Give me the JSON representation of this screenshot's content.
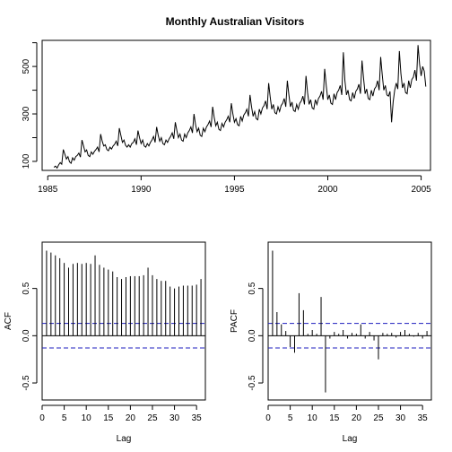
{
  "chart_data": [
    {
      "type": "line",
      "title": "Monthly Australian Visitors",
      "xlabel": "",
      "ylabel": "",
      "xlim": [
        1984.7,
        2005.5
      ],
      "ylim": [
        62,
        610
      ],
      "x_ticks": [
        1985,
        1990,
        1995,
        2000,
        2005
      ],
      "y_ticks": [
        100,
        300,
        500
      ],
      "start_year": 1985.333,
      "frequency": 12,
      "series": [
        {
          "values": [
            75,
            80,
            72,
            85,
            95,
            88,
            150,
            130,
            110,
            120,
            98,
            92,
            115,
            105,
            120,
            125,
            135,
            118,
            190,
            165,
            140,
            148,
            125,
            120,
            140,
            130,
            142,
            150,
            160,
            140,
            215,
            185,
            165,
            170,
            150,
            145,
            160,
            152,
            165,
            172,
            185,
            165,
            240,
            210,
            180,
            190,
            168,
            160,
            170,
            160,
            175,
            180,
            195,
            170,
            230,
            200,
            175,
            190,
            165,
            160,
            175,
            165,
            180,
            190,
            205,
            180,
            245,
            210,
            185,
            200,
            175,
            170,
            190,
            180,
            195,
            205,
            220,
            195,
            265,
            230,
            200,
            215,
            190,
            185,
            215,
            200,
            220,
            230,
            245,
            220,
            300,
            255,
            225,
            240,
            210,
            205,
            240,
            225,
            245,
            255,
            270,
            245,
            330,
            285,
            250,
            265,
            235,
            230,
            260,
            245,
            265,
            275,
            290,
            265,
            345,
            300,
            265,
            280,
            255,
            250,
            290,
            270,
            295,
            305,
            320,
            290,
            380,
            330,
            290,
            310,
            280,
            275,
            320,
            300,
            325,
            335,
            355,
            320,
            430,
            370,
            320,
            340,
            305,
            300,
            330,
            310,
            335,
            345,
            365,
            330,
            440,
            380,
            330,
            350,
            315,
            310,
            340,
            320,
            345,
            355,
            375,
            340,
            460,
            390,
            340,
            360,
            325,
            320,
            360,
            340,
            365,
            375,
            395,
            360,
            490,
            420,
            360,
            380,
            345,
            340,
            385,
            360,
            390,
            400,
            420,
            380,
            560,
            440,
            380,
            400,
            360,
            355,
            390,
            365,
            395,
            405,
            425,
            385,
            525,
            450,
            385,
            405,
            365,
            360,
            400,
            375,
            405,
            415,
            440,
            400,
            540,
            465,
            400,
            420,
            380,
            375,
            395,
            265,
            350,
            400,
            430,
            405,
            565,
            470,
            410,
            430,
            390,
            385,
            440,
            410,
            445,
            455,
            485,
            440,
            590,
            510,
            460,
            500,
            480,
            415
          ]
        }
      ]
    },
    {
      "type": "bar",
      "xlabel": "Lag",
      "ylabel": "ACF",
      "xlim": [
        0,
        37
      ],
      "ylim": [
        -0.68,
        0.99
      ],
      "x_ticks": [
        0,
        5,
        10,
        15,
        20,
        25,
        30,
        35
      ],
      "y_ticks": [
        -0.5,
        0.0,
        0.5
      ],
      "y_tick_labels": [
        "-0.5",
        "0.0",
        "0.5"
      ],
      "confidence_band": 0.13,
      "lags": [
        1,
        2,
        3,
        4,
        5,
        6,
        7,
        8,
        9,
        10,
        11,
        12,
        13,
        14,
        15,
        16,
        17,
        18,
        19,
        20,
        21,
        22,
        23,
        24,
        25,
        26,
        27,
        28,
        29,
        30,
        31,
        32,
        33,
        34,
        35,
        36
      ],
      "values": [
        0.9,
        0.88,
        0.85,
        0.82,
        0.77,
        0.72,
        0.76,
        0.77,
        0.76,
        0.77,
        0.76,
        0.85,
        0.75,
        0.72,
        0.7,
        0.68,
        0.62,
        0.6,
        0.62,
        0.63,
        0.63,
        0.63,
        0.64,
        0.72,
        0.64,
        0.6,
        0.58,
        0.58,
        0.52,
        0.5,
        0.52,
        0.53,
        0.53,
        0.53,
        0.54,
        0.6
      ]
    },
    {
      "type": "bar",
      "xlabel": "Lag",
      "ylabel": "PACF",
      "xlim": [
        0,
        37
      ],
      "ylim": [
        -0.68,
        0.99
      ],
      "x_ticks": [
        0,
        5,
        10,
        15,
        20,
        25,
        30,
        35
      ],
      "y_ticks": [
        -0.5,
        0.0,
        0.5
      ],
      "y_tick_labels": [
        "-0.5",
        "0.0",
        "0.5"
      ],
      "confidence_band": 0.13,
      "lags": [
        1,
        2,
        3,
        4,
        5,
        6,
        7,
        8,
        9,
        10,
        11,
        12,
        13,
        14,
        15,
        16,
        17,
        18,
        19,
        20,
        21,
        22,
        23,
        24,
        25,
        26,
        27,
        28,
        29,
        30,
        31,
        32,
        33,
        34,
        35,
        36
      ],
      "values": [
        0.9,
        0.25,
        0.12,
        0.05,
        -0.12,
        -0.18,
        0.45,
        0.27,
        0.02,
        0.06,
        0.02,
        0.41,
        -0.6,
        -0.03,
        0.04,
        0.02,
        0.06,
        -0.03,
        0.03,
        0.02,
        0.12,
        -0.03,
        0.04,
        -0.05,
        -0.25,
        0.03,
        0.02,
        0.03,
        -0.02,
        0.04,
        0.06,
        0.02,
        -0.01,
        0.03,
        -0.03,
        0.05
      ]
    }
  ]
}
